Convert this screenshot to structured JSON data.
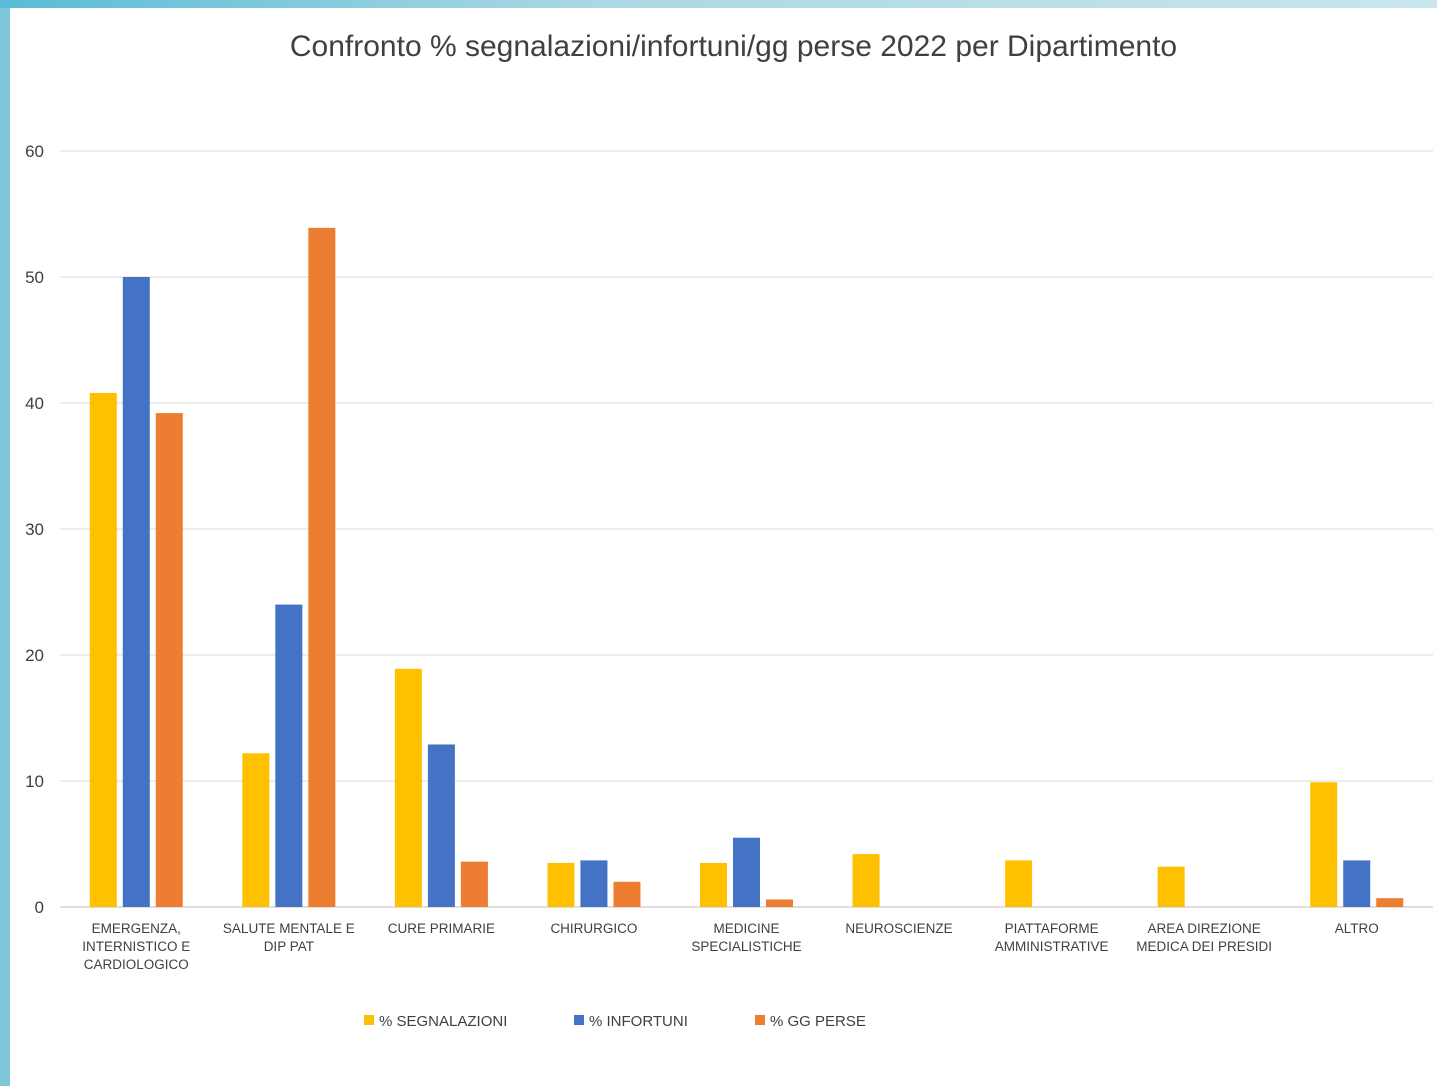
{
  "chart_data": {
    "type": "bar",
    "title": "Confronto % segnalazioni/infortuni/gg perse 2022 per Dipartimento",
    "xlabel": "",
    "ylabel": "",
    "ylim": [
      0,
      60
    ],
    "yticks": [
      "0",
      "10",
      "20",
      "30",
      "40",
      "50",
      "60"
    ],
    "grid": true,
    "legend_position": "bottom",
    "categories": [
      [
        "EMERGENZA,",
        "INTERNISTICO E",
        "CARDIOLOGICO"
      ],
      [
        "SALUTE MENTALE E",
        "DIP PAT"
      ],
      [
        "CURE PRIMARIE"
      ],
      [
        "CHIRURGICO"
      ],
      [
        "MEDICINE",
        "SPECIALISTICHE"
      ],
      [
        "NEUROSCIENZE"
      ],
      [
        "PIATTAFORME",
        "AMMINISTRATIVE"
      ],
      [
        "AREA DIREZIONE",
        "MEDICA DEI PRESIDI"
      ],
      [
        "ALTRO"
      ]
    ],
    "series": [
      {
        "name": "% SEGNALAZIONI",
        "color": "#ffc000",
        "values": [
          40.8,
          12.2,
          18.9,
          3.5,
          3.5,
          4.2,
          3.7,
          3.2,
          9.9
        ]
      },
      {
        "name": "% INFORTUNI",
        "color": "#4472c4",
        "values": [
          50.0,
          24.0,
          12.9,
          3.7,
          5.5,
          0,
          0,
          0,
          3.7
        ]
      },
      {
        "name": "% GG PERSE",
        "color": "#ed7d31",
        "values": [
          39.2,
          53.9,
          3.6,
          2.0,
          0.6,
          0,
          0,
          0,
          0.7
        ]
      }
    ]
  }
}
